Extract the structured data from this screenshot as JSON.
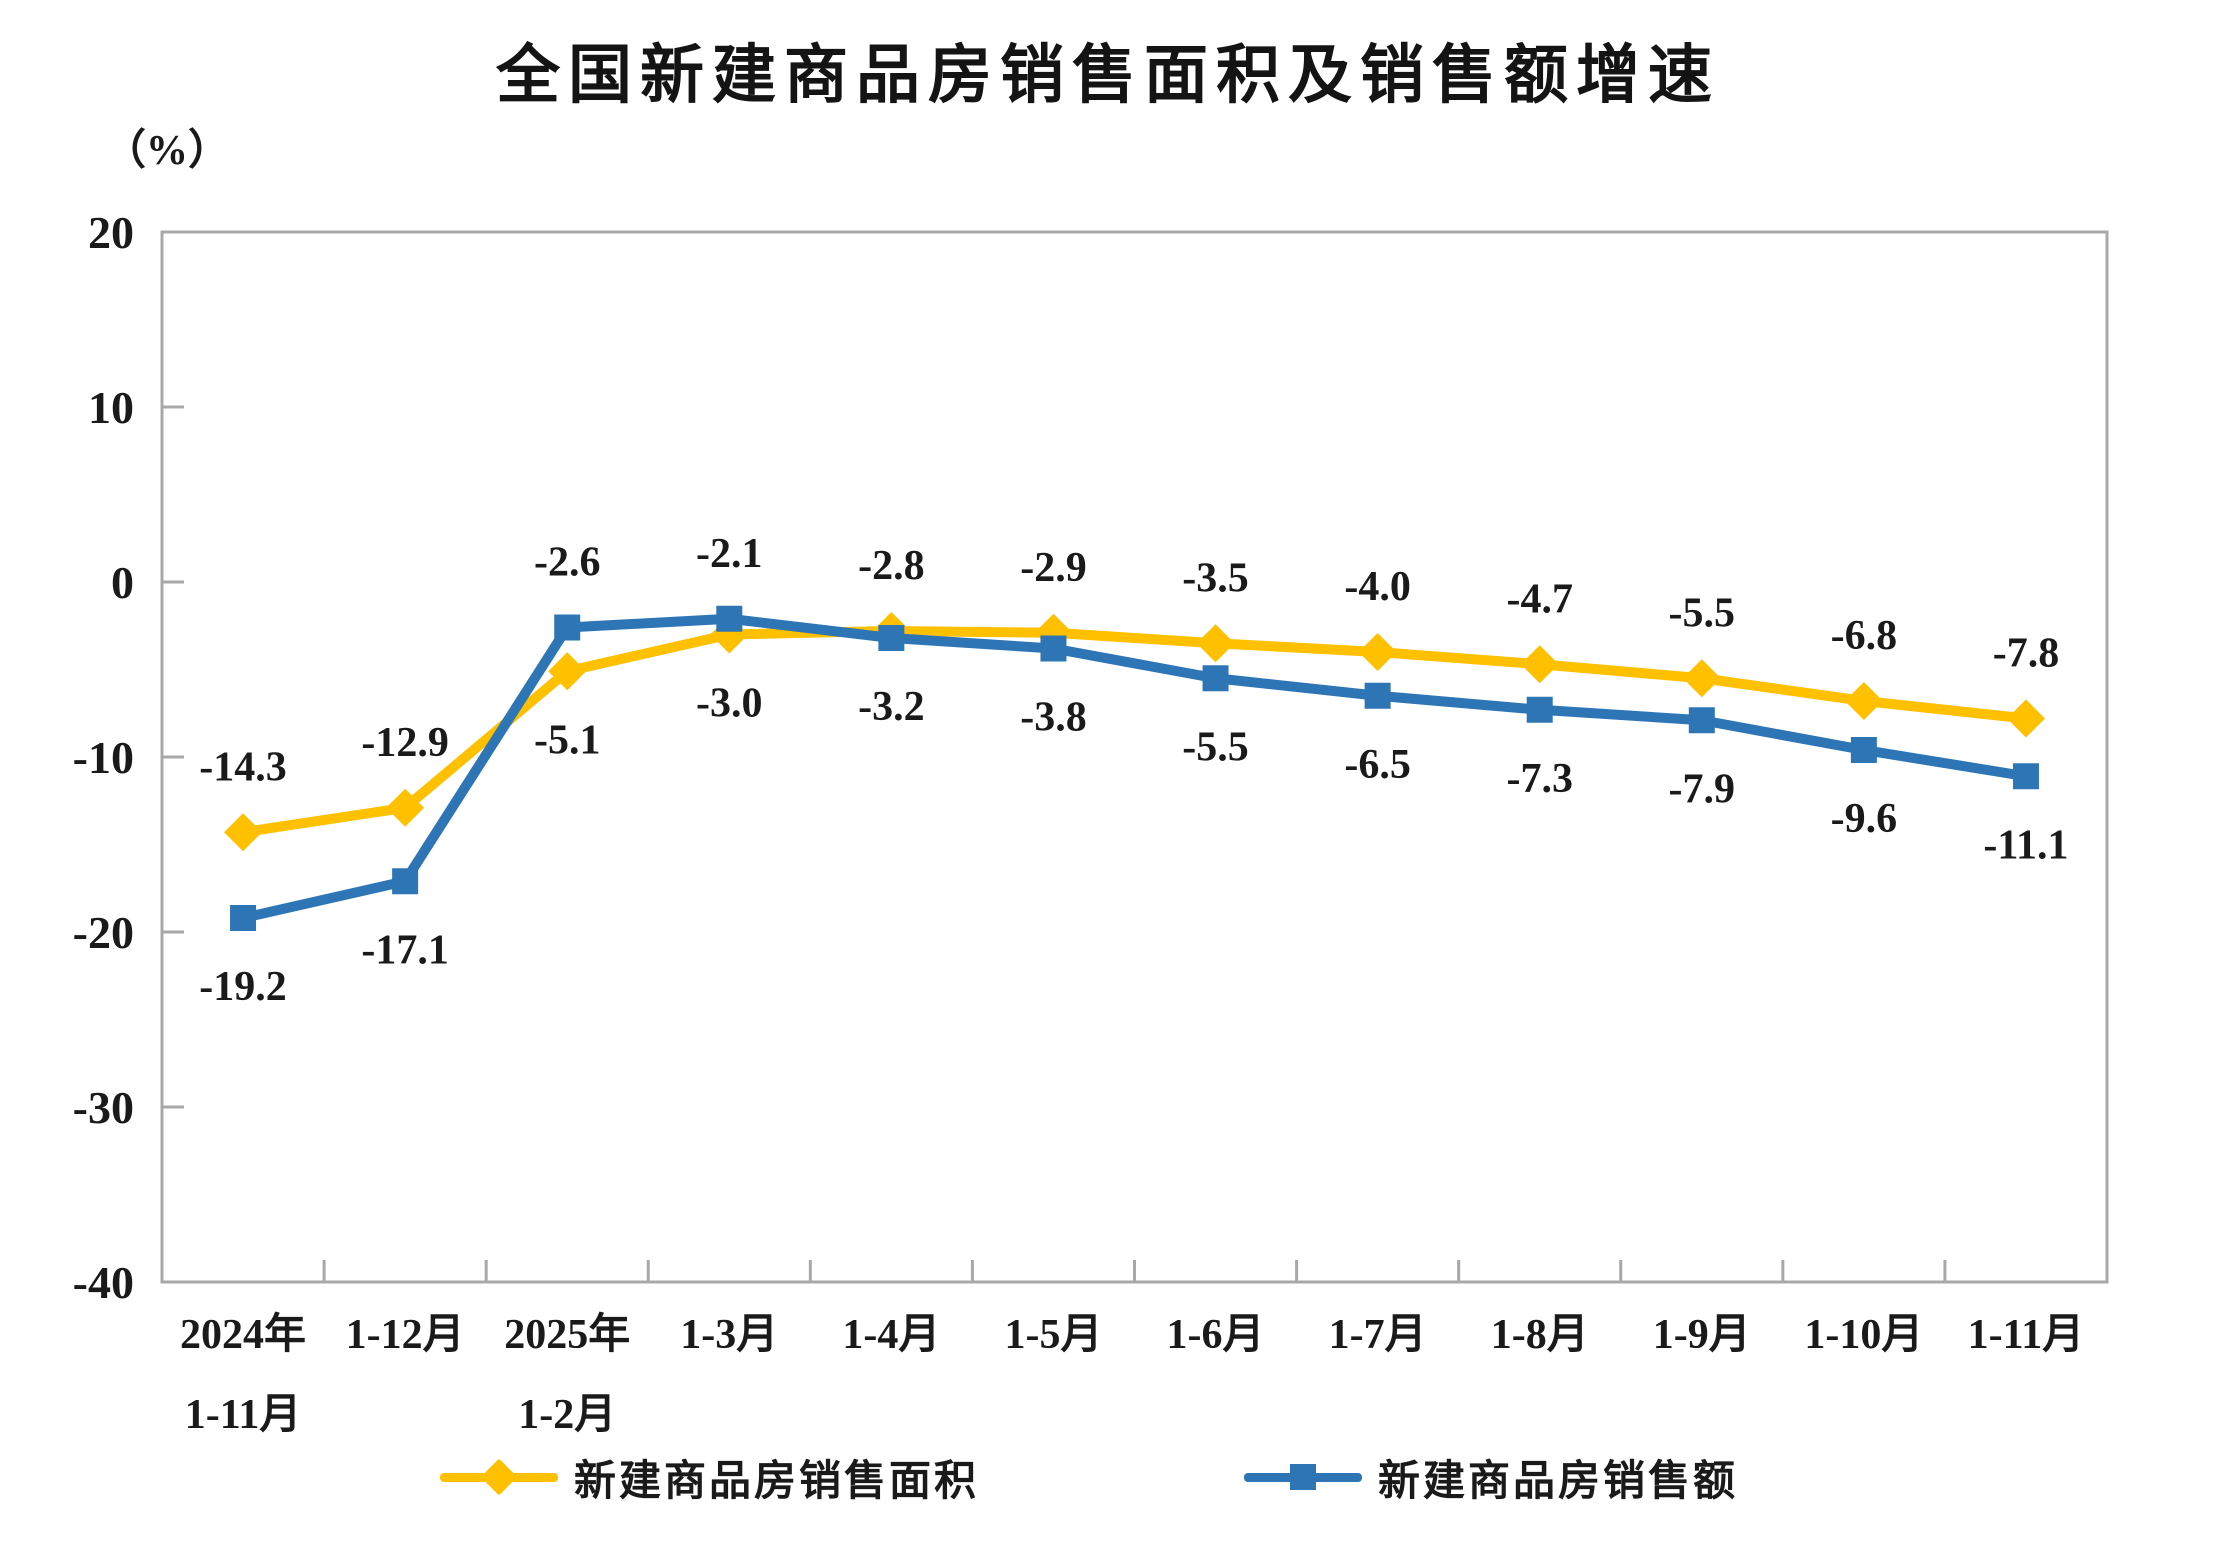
{
  "page": {
    "background": "#ffffff",
    "text_color": "#1a1a1a"
  },
  "chart_data": {
    "type": "line",
    "title": "全国新建商品房销售面积及销售额增速",
    "unit_label": "（%）",
    "categories": [
      [
        "2024年",
        "1-11月"
      ],
      [
        "1-12月"
      ],
      [
        "2025年",
        "1-2月"
      ],
      [
        "1-3月"
      ],
      [
        "1-4月"
      ],
      [
        "1-5月"
      ],
      [
        "1-6月"
      ],
      [
        "1-7月"
      ],
      [
        "1-8月"
      ],
      [
        "1-9月"
      ],
      [
        "1-10月"
      ],
      [
        "1-11月"
      ]
    ],
    "series": [
      {
        "id": "sales-area",
        "name": "新建商品房销售面积",
        "color": "#FFC000",
        "marker": "diamond",
        "values": [
          -14.3,
          -12.9,
          -5.1,
          -3.0,
          -2.8,
          -2.9,
          -3.5,
          -4.0,
          -4.7,
          -5.5,
          -6.8,
          -7.8
        ],
        "labels": [
          "-14.3",
          "-12.9",
          "-5.1",
          "-3.0",
          "-2.8",
          "-2.9",
          "-3.5",
          "-4.0",
          "-4.7",
          "-5.5",
          "-6.8",
          "-7.8"
        ]
      },
      {
        "id": "sales-amount",
        "name": "新建商品房销售额",
        "color": "#2E75B6",
        "marker": "square",
        "values": [
          -19.2,
          -17.1,
          -2.6,
          -2.1,
          -3.2,
          -3.8,
          -5.5,
          -6.5,
          -7.3,
          -7.9,
          -9.6,
          -11.1
        ],
        "labels": [
          "-19.2",
          "-17.1",
          "-2.6",
          "-2.1",
          "-3.2",
          "-3.8",
          "-5.5",
          "-6.5",
          "-7.3",
          "-7.9",
          "-9.6",
          "-11.1"
        ]
      }
    ],
    "y_axis": {
      "min": -40,
      "max": 20,
      "ticks": [
        20,
        10,
        0,
        -10,
        -20,
        -30,
        -40
      ]
    },
    "axis_color": "#A8A8A8",
    "label_color": "#1a1a1a",
    "grid": false,
    "legend_position": "bottom"
  }
}
